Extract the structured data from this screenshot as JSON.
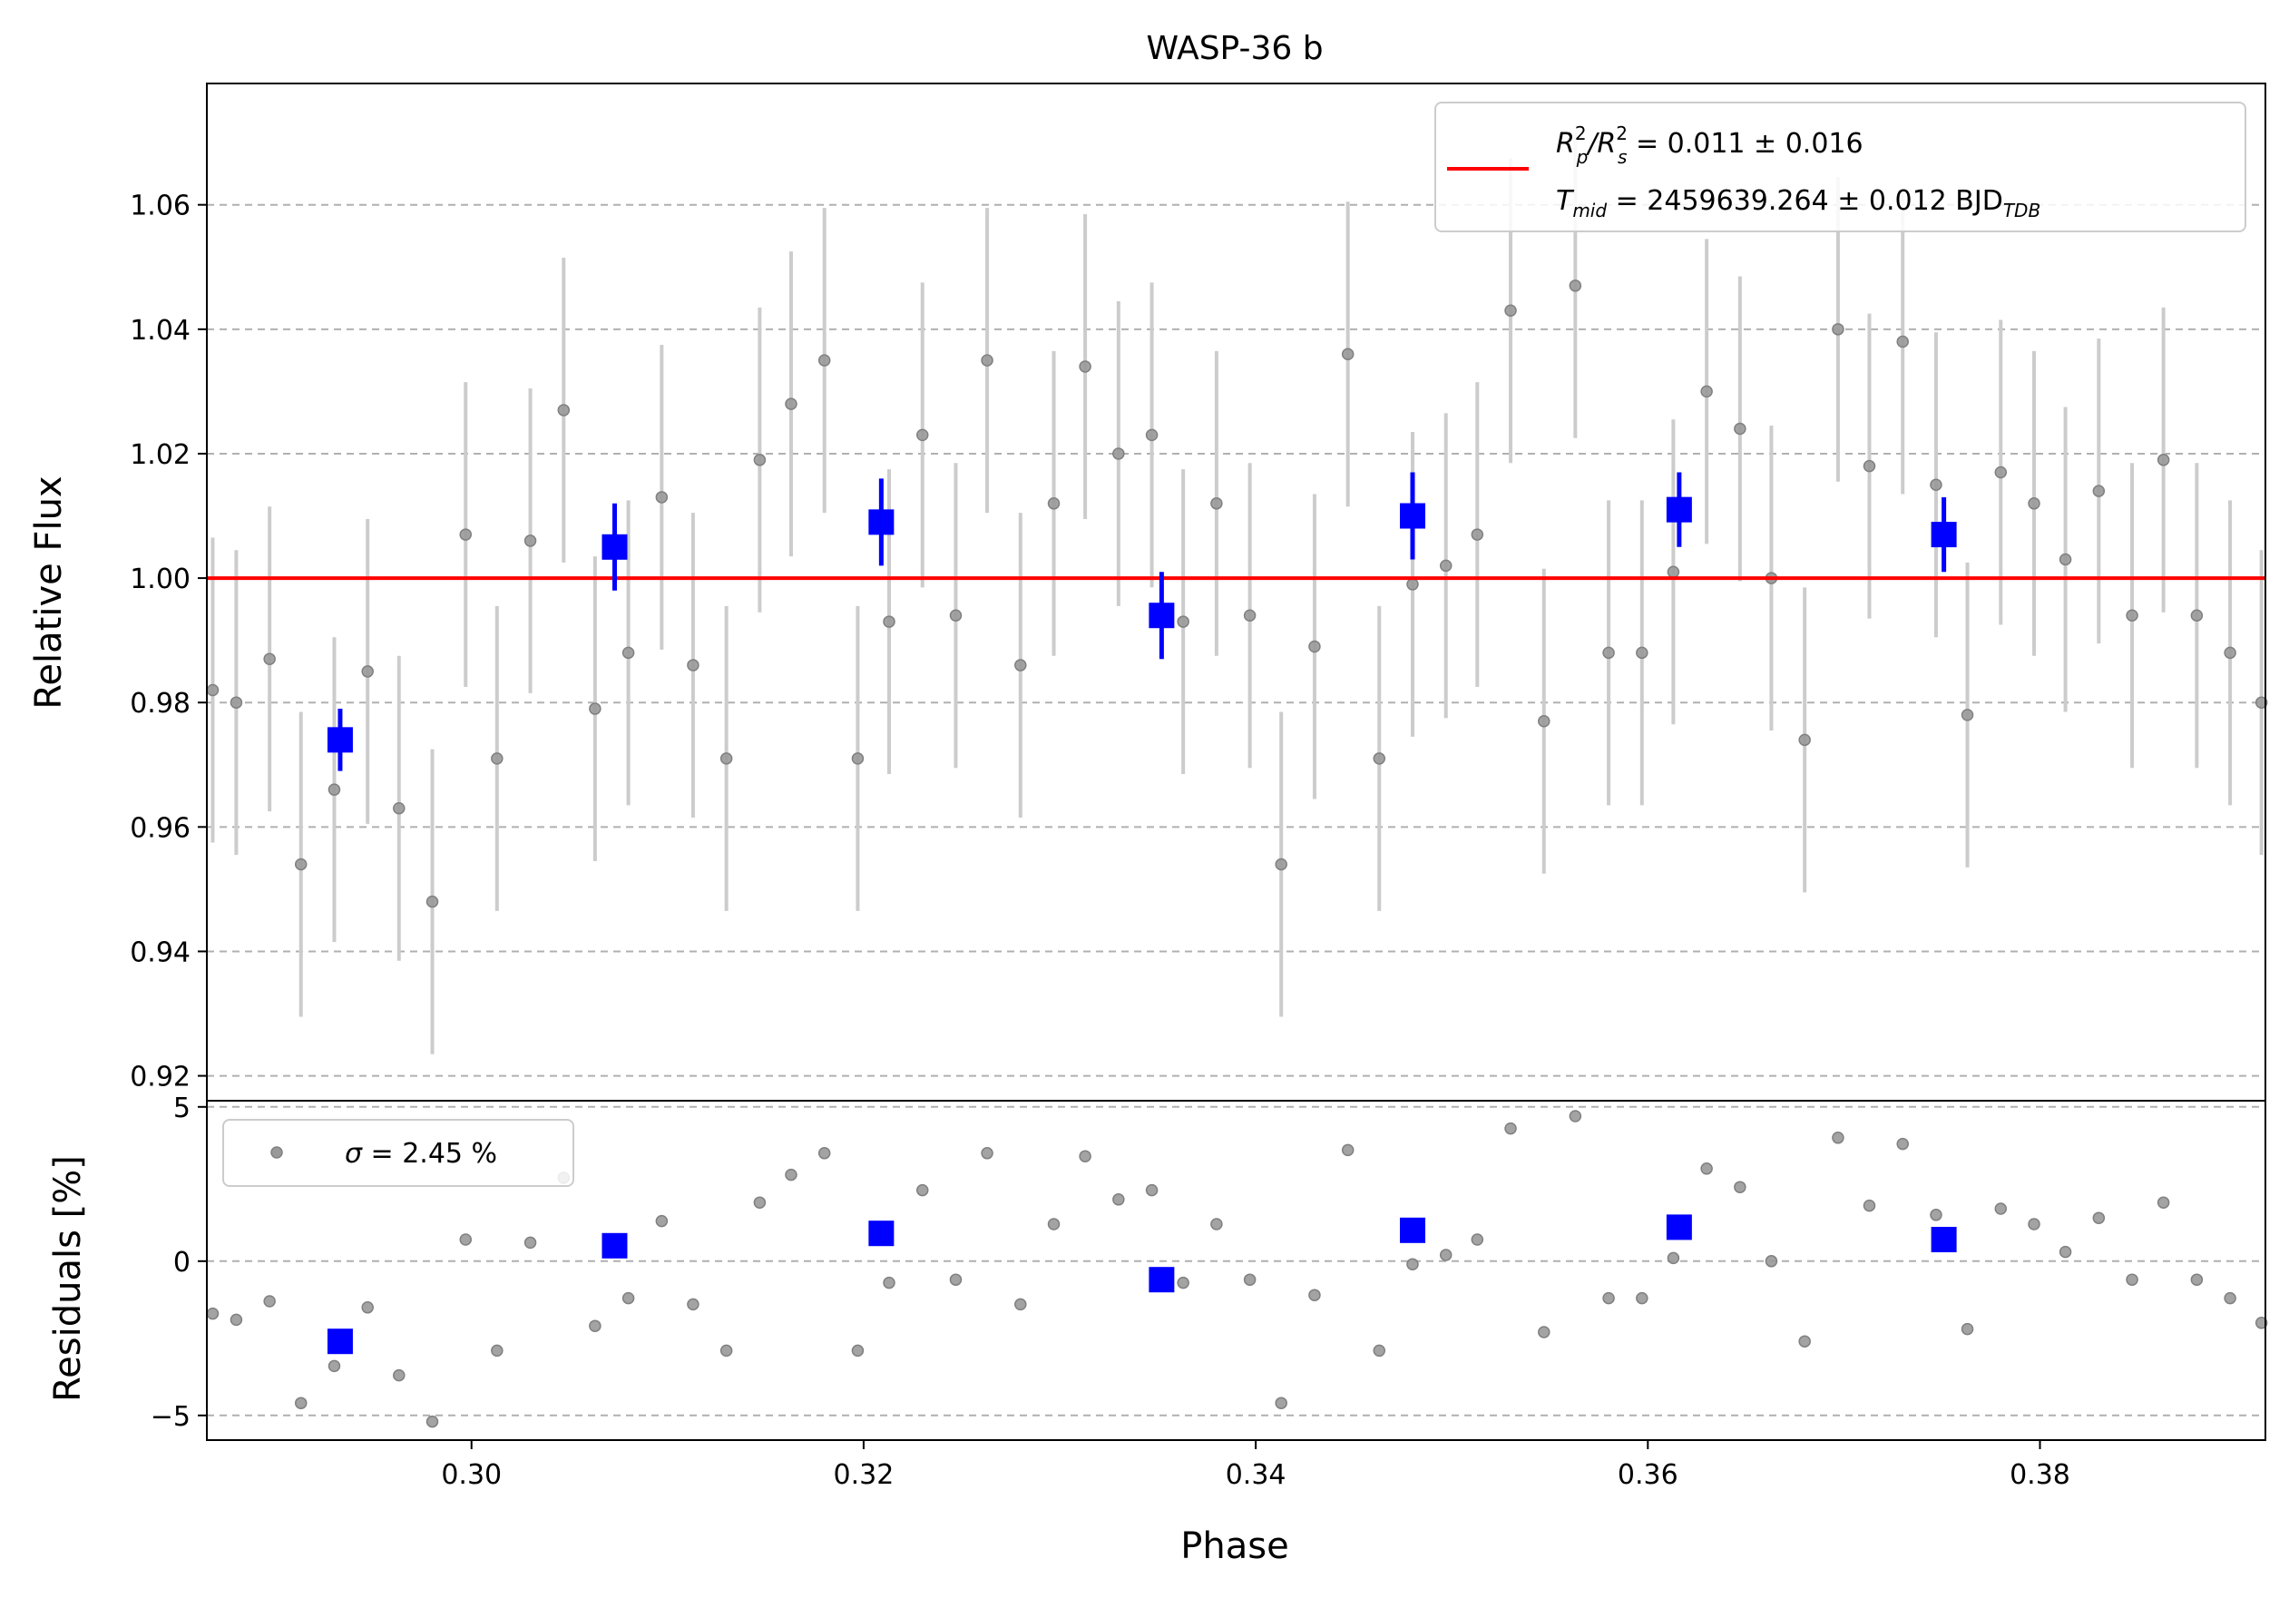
{
  "chart_data": [
    {
      "type": "scatter",
      "panel": "main",
      "title": "WASP-36 b",
      "xlabel": "",
      "ylabel": "Relative Flux",
      "xlim": [
        0.2865,
        0.3915
      ],
      "ylim": [
        0.916,
        1.0795
      ],
      "yticks": [
        0.92,
        0.94,
        0.96,
        0.98,
        1.0,
        1.02,
        1.04,
        1.06
      ],
      "ytick_labels": [
        "0.92",
        "0.94",
        "0.96",
        "0.98",
        "1.00",
        "1.02",
        "1.04",
        "1.06"
      ],
      "grid": "y-dashed",
      "legend": {
        "placement": "top-right",
        "entries": [
          {
            "color": "#ff0000",
            "line1": {
              "a": "R",
              "a_sup": "2",
              "a_sub": "p",
              "b": "/R",
              "b_sup": "2",
              "b_sub": "s",
              "rest": " = 0.011 ± 0.016"
            },
            "line2": {
              "a": "T",
              "a_sub": "mid",
              "rest": " = 2459639.264 ± 0.012 BJD",
              "tail_sub": "TDB"
            }
          }
        ]
      },
      "model": {
        "name": "",
        "color": "#ff0000",
        "y": 1.0
      },
      "raw_series": {
        "color": "#999999",
        "errorbar_color": "#cccccc",
        "x": [
          0.2868,
          0.288,
          0.2897,
          0.2913,
          0.293,
          0.2947,
          0.2963,
          0.298,
          0.2997,
          0.3013,
          0.303,
          0.3047,
          0.3063,
          0.308,
          0.3097,
          0.3113,
          0.313,
          0.3147,
          0.3163,
          0.318,
          0.3197,
          0.3213,
          0.323,
          0.3247,
          0.3263,
          0.328,
          0.3297,
          0.3313,
          0.333,
          0.3347,
          0.3363,
          0.338,
          0.3397,
          0.3413,
          0.343,
          0.3447,
          0.3463,
          0.348,
          0.3497,
          0.3513,
          0.353,
          0.3547,
          0.3563,
          0.358,
          0.3597,
          0.3613,
          0.363,
          0.3647,
          0.3663,
          0.368,
          0.3697,
          0.3713,
          0.373,
          0.3747,
          0.3763,
          0.378,
          0.3797,
          0.3813,
          0.383,
          0.3847,
          0.3863,
          0.388,
          0.3897,
          0.3913
        ],
        "y": [
          0.982,
          0.98,
          0.987,
          0.954,
          0.966,
          0.985,
          0.963,
          0.948,
          1.007,
          0.971,
          1.006,
          1.027,
          0.979,
          0.988,
          1.013,
          0.986,
          0.971,
          1.019,
          1.028,
          1.035,
          0.971,
          0.993,
          1.023,
          0.994,
          1.035,
          0.986,
          1.012,
          1.034,
          1.02,
          1.023,
          0.993,
          1.012,
          0.994,
          0.954,
          0.989,
          1.036,
          0.971,
          0.999,
          1.002,
          1.007,
          1.043,
          0.977,
          1.047,
          0.988,
          0.988,
          1.001,
          1.03,
          1.024,
          1.0,
          0.974,
          1.04,
          1.018,
          1.038,
          1.015,
          0.978,
          1.017,
          1.012,
          1.003,
          1.014,
          0.994,
          1.019,
          0.994,
          0.988,
          0.98
        ],
        "yerr": [
          0.0245,
          0.0245,
          0.0245,
          0.0245,
          0.0245,
          0.0245,
          0.0245,
          0.0245,
          0.0245,
          0.0245,
          0.0245,
          0.0245,
          0.0245,
          0.0245,
          0.0245,
          0.0245,
          0.0245,
          0.0245,
          0.0245,
          0.0245,
          0.0245,
          0.0245,
          0.0245,
          0.0245,
          0.0245,
          0.0245,
          0.0245,
          0.0245,
          0.0245,
          0.0245,
          0.0245,
          0.0245,
          0.0245,
          0.0245,
          0.0245,
          0.0245,
          0.0245,
          0.0245,
          0.0245,
          0.0245,
          0.0245,
          0.0245,
          0.0245,
          0.0245,
          0.0245,
          0.0245,
          0.0245,
          0.0245,
          0.0245,
          0.0245,
          0.0245,
          0.0245,
          0.0245,
          0.0245,
          0.0245,
          0.0245,
          0.0245,
          0.0245,
          0.0245,
          0.0245,
          0.0245,
          0.0245,
          0.0245,
          0.0245
        ]
      },
      "binned_series": {
        "color": "#0000ff",
        "x": [
          0.2933,
          0.3073,
          0.3209,
          0.3352,
          0.348,
          0.3616,
          0.3751
        ],
        "y": [
          0.974,
          1.005,
          1.009,
          0.994,
          1.01,
          1.011,
          1.007
        ],
        "yerr": [
          0.005,
          0.007,
          0.007,
          0.007,
          0.007,
          0.006,
          0.006
        ]
      }
    },
    {
      "type": "scatter",
      "panel": "residuals",
      "xlabel": "Phase",
      "ylabel": "Residuals [%]",
      "xlim": [
        0.2865,
        0.3915
      ],
      "ylim": [
        -5.8,
        5.2
      ],
      "xticks": [
        0.3,
        0.32,
        0.34,
        0.36,
        0.38
      ],
      "xtick_labels": [
        "0.30",
        "0.32",
        "0.34",
        "0.36",
        "0.38"
      ],
      "yticks": [
        -5,
        0,
        5
      ],
      "ytick_labels": [
        "−5",
        "0",
        "5"
      ],
      "grid": "y-dashed",
      "legend": {
        "placement": "top-left",
        "entries": [
          {
            "color": "#999999",
            "sigma_symbol": "σ",
            "rest": " = 2.45 %"
          }
        ]
      },
      "raw_series": {
        "color": "#999999",
        "x": [
          0.2868,
          0.288,
          0.2897,
          0.2913,
          0.293,
          0.2947,
          0.2963,
          0.298,
          0.2997,
          0.3013,
          0.303,
          0.3047,
          0.3063,
          0.308,
          0.3097,
          0.3113,
          0.313,
          0.3147,
          0.3163,
          0.318,
          0.3197,
          0.3213,
          0.323,
          0.3247,
          0.3263,
          0.328,
          0.3297,
          0.3313,
          0.333,
          0.3347,
          0.3363,
          0.338,
          0.3397,
          0.3413,
          0.343,
          0.3447,
          0.3463,
          0.348,
          0.3497,
          0.3513,
          0.353,
          0.3547,
          0.3563,
          0.358,
          0.3597,
          0.3613,
          0.363,
          0.3647,
          0.3663,
          0.368,
          0.3697,
          0.3713,
          0.373,
          0.3747,
          0.3763,
          0.378,
          0.3797,
          0.3813,
          0.383,
          0.3847,
          0.3863,
          0.388,
          0.3897,
          0.3913
        ],
        "y": [
          -1.7,
          -1.9,
          -1.3,
          -4.6,
          -3.4,
          -1.5,
          -3.7,
          -5.2,
          0.7,
          -2.9,
          0.6,
          2.7,
          -2.1,
          -1.2,
          1.3,
          -1.4,
          -2.9,
          1.9,
          2.8,
          3.5,
          -2.9,
          -0.7,
          2.3,
          -0.6,
          3.5,
          -1.4,
          1.2,
          3.4,
          2.0,
          2.3,
          -0.7,
          1.2,
          -0.6,
          -4.6,
          -1.1,
          3.6,
          -2.9,
          -0.1,
          0.2,
          0.7,
          4.3,
          -2.3,
          4.7,
          -1.2,
          -1.2,
          0.1,
          3.0,
          2.4,
          0.0,
          -2.6,
          4.0,
          1.8,
          3.8,
          1.5,
          -2.2,
          1.7,
          1.2,
          0.3,
          1.4,
          -0.6,
          1.9,
          -0.6,
          -1.2,
          -2.0
        ]
      },
      "binned_series": {
        "color": "#0000ff",
        "x": [
          0.2933,
          0.3073,
          0.3209,
          0.3352,
          0.348,
          0.3616,
          0.3751
        ],
        "y": [
          -2.6,
          0.5,
          0.9,
          -0.6,
          1.0,
          1.1,
          0.7
        ]
      }
    }
  ]
}
